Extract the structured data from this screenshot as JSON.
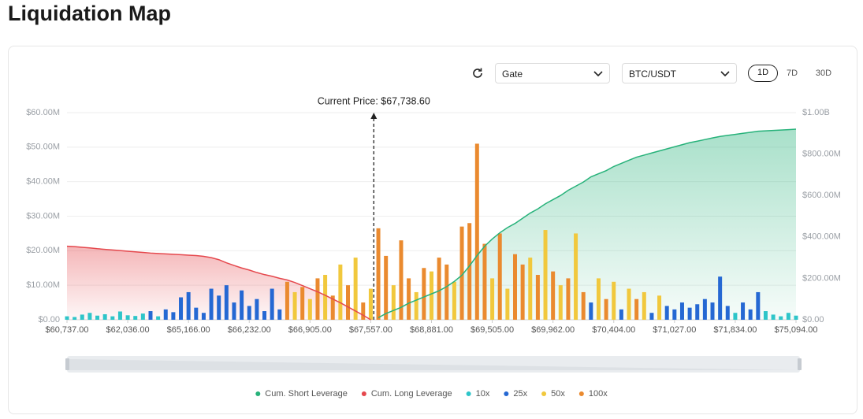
{
  "page_title": "Liquidation Map",
  "controls": {
    "exchange": "Gate",
    "pair": "BTC/USDT",
    "ranges": [
      "1D",
      "7D",
      "30D"
    ]
  },
  "chart_data": {
    "type": "bar",
    "annotation": "Current Price: $67,738.60",
    "categories": [
      "$60,737.00",
      null,
      null,
      null,
      null,
      null,
      null,
      null,
      "$62,036.00",
      null,
      null,
      null,
      null,
      null,
      null,
      null,
      "$65,166.00",
      null,
      null,
      null,
      null,
      null,
      null,
      null,
      "$66,232.00",
      null,
      null,
      null,
      null,
      null,
      null,
      null,
      "$66,905.00",
      null,
      null,
      null,
      null,
      null,
      null,
      null,
      "$67,557.00",
      null,
      null,
      null,
      null,
      null,
      null,
      null,
      "$68,881.00",
      null,
      null,
      null,
      null,
      null,
      null,
      null,
      "$69,505.00",
      null,
      null,
      null,
      null,
      null,
      null,
      null,
      "$69,962.00",
      null,
      null,
      null,
      null,
      null,
      null,
      null,
      "$70,404.00",
      null,
      null,
      null,
      null,
      null,
      null,
      null,
      "$71,027.00",
      null,
      null,
      null,
      null,
      null,
      null,
      null,
      "$71,834.00",
      null,
      null,
      null,
      null,
      null,
      null,
      null,
      "$75,094.00"
    ],
    "ylim": [
      0,
      60000000
    ],
    "yticks": [
      {
        "value": 0,
        "label": "$0.00"
      },
      {
        "value": 10000000,
        "label": "$10.00M"
      },
      {
        "value": 20000000,
        "label": "$20.00M"
      },
      {
        "value": 30000000,
        "label": "$30.00M"
      },
      {
        "value": 40000000,
        "label": "$40.00M"
      },
      {
        "value": 50000000,
        "label": "$50.00M"
      },
      {
        "value": 60000000,
        "label": "$60.00M"
      }
    ],
    "y2lim": [
      0,
      1000000000
    ],
    "y2ticks": [
      {
        "value": 0,
        "label": "$0.00"
      },
      {
        "value": 200000000,
        "label": "$200.00M"
      },
      {
        "value": 400000000,
        "label": "$400.00M"
      },
      {
        "value": 600000000,
        "label": "$600.00M"
      },
      {
        "value": 800000000,
        "label": "$800.00M"
      },
      {
        "value": 1000000000,
        "label": "$1.00B"
      }
    ],
    "grid": true,
    "legend": "bottom",
    "series": [
      {
        "name": "Cum. Short Leverage",
        "type": "area",
        "axis": "y2",
        "color": "#27b27a",
        "values": [
          null,
          null,
          null,
          null,
          null,
          null,
          null,
          null,
          null,
          null,
          null,
          null,
          null,
          null,
          null,
          null,
          null,
          null,
          null,
          null,
          null,
          null,
          null,
          null,
          null,
          null,
          null,
          null,
          null,
          null,
          null,
          null,
          null,
          null,
          null,
          null,
          null,
          null,
          null,
          null,
          null,
          10000000,
          30000000,
          45000000,
          60000000,
          80000000,
          95000000,
          110000000,
          125000000,
          140000000,
          160000000,
          185000000,
          215000000,
          260000000,
          310000000,
          355000000,
          390000000,
          420000000,
          445000000,
          465000000,
          490000000,
          515000000,
          535000000,
          560000000,
          580000000,
          600000000,
          625000000,
          645000000,
          665000000,
          690000000,
          705000000,
          720000000,
          740000000,
          755000000,
          770000000,
          785000000,
          795000000,
          805000000,
          815000000,
          825000000,
          835000000,
          845000000,
          855000000,
          862000000,
          870000000,
          878000000,
          885000000,
          890000000,
          895000000,
          900000000,
          905000000,
          910000000,
          912000000,
          914000000,
          916000000,
          918000000,
          920000000
        ]
      },
      {
        "name": "Cum. Long Leverage",
        "type": "area",
        "axis": "y2",
        "color": "#e5484d",
        "values": [
          355000000,
          353000000,
          350000000,
          347000000,
          343000000,
          340000000,
          337000000,
          334000000,
          331000000,
          328000000,
          325000000,
          322000000,
          320000000,
          318000000,
          316000000,
          314000000,
          312000000,
          310000000,
          306000000,
          300000000,
          290000000,
          275000000,
          262000000,
          250000000,
          240000000,
          228000000,
          218000000,
          210000000,
          200000000,
          192000000,
          180000000,
          165000000,
          150000000,
          135000000,
          118000000,
          100000000,
          82000000,
          62000000,
          42000000,
          22000000,
          0,
          null,
          null,
          null,
          null,
          null,
          null,
          null,
          null,
          null,
          null,
          null,
          null,
          null,
          null,
          null,
          null,
          null,
          null,
          null,
          null,
          null,
          null,
          null,
          null,
          null,
          null,
          null,
          null,
          null,
          null,
          null,
          null,
          null,
          null,
          null,
          null,
          null,
          null,
          null,
          null,
          null,
          null,
          null,
          null,
          null,
          null,
          null,
          null,
          null,
          null,
          null,
          null,
          null,
          null,
          null,
          null
        ]
      },
      {
        "name": "10x",
        "type": "bar",
        "color": "#2ec5c9",
        "values": [
          1000000,
          800000,
          1500000,
          2000000,
          1200000,
          1600000,
          1000000,
          2400000,
          1300000,
          1100000,
          1800000,
          null,
          1000000,
          null,
          null,
          null,
          null,
          null,
          null,
          null,
          null,
          null,
          null,
          null,
          null,
          null,
          null,
          null,
          null,
          null,
          null,
          null,
          null,
          null,
          null,
          null,
          null,
          null,
          null,
          null,
          null,
          null,
          null,
          null,
          null,
          null,
          null,
          null,
          null,
          null,
          null,
          null,
          null,
          null,
          null,
          null,
          null,
          null,
          null,
          null,
          null,
          null,
          null,
          null,
          null,
          null,
          null,
          null,
          null,
          null,
          null,
          null,
          null,
          null,
          null,
          null,
          null,
          null,
          null,
          null,
          null,
          null,
          null,
          null,
          null,
          null,
          null,
          null,
          2000000,
          null,
          null,
          null,
          2500000,
          1500000,
          1000000,
          2000000,
          1200000
        ]
      },
      {
        "name": "25x",
        "type": "bar",
        "color": "#2568d3",
        "values": [
          null,
          null,
          null,
          null,
          null,
          null,
          null,
          null,
          null,
          null,
          null,
          2500000,
          null,
          3000000,
          2200000,
          6500000,
          8000000,
          3500000,
          2000000,
          9000000,
          7000000,
          10000000,
          5000000,
          8500000,
          4000000,
          6000000,
          2500000,
          9000000,
          3000000,
          null,
          null,
          null,
          null,
          null,
          null,
          null,
          null,
          null,
          null,
          null,
          null,
          null,
          null,
          null,
          null,
          null,
          null,
          null,
          null,
          null,
          null,
          null,
          null,
          null,
          null,
          null,
          null,
          null,
          null,
          null,
          null,
          null,
          null,
          null,
          null,
          null,
          null,
          null,
          null,
          5000000,
          null,
          null,
          null,
          3000000,
          null,
          null,
          null,
          2000000,
          null,
          4000000,
          3000000,
          5000000,
          3500000,
          4500000,
          6000000,
          5000000,
          12500000,
          4000000,
          null,
          5000000,
          3000000,
          8000000,
          null,
          null,
          null,
          null,
          null
        ]
      },
      {
        "name": "50x",
        "type": "bar",
        "color": "#f1c83d",
        "values": [
          null,
          null,
          null,
          null,
          null,
          null,
          null,
          null,
          null,
          null,
          null,
          null,
          null,
          null,
          null,
          null,
          null,
          null,
          null,
          null,
          null,
          null,
          null,
          null,
          null,
          null,
          null,
          null,
          null,
          null,
          8000000,
          null,
          6000000,
          null,
          13000000,
          null,
          16000000,
          null,
          18000000,
          null,
          9000000,
          null,
          null,
          10000000,
          null,
          null,
          8000000,
          null,
          14000000,
          null,
          null,
          11000000,
          null,
          null,
          null,
          null,
          12000000,
          null,
          9000000,
          null,
          null,
          18000000,
          null,
          26000000,
          null,
          10000000,
          null,
          25000000,
          null,
          null,
          12000000,
          null,
          11000000,
          null,
          9000000,
          null,
          8000000,
          null,
          7000000,
          null,
          null,
          null,
          null,
          null,
          null,
          null,
          null,
          null,
          null,
          null,
          null,
          null,
          null,
          null,
          null,
          null,
          null
        ]
      },
      {
        "name": "100x",
        "type": "bar",
        "color": "#ea8a2f",
        "values": [
          null,
          null,
          null,
          null,
          null,
          null,
          null,
          null,
          null,
          null,
          null,
          null,
          null,
          null,
          null,
          null,
          null,
          null,
          null,
          null,
          null,
          null,
          null,
          null,
          null,
          null,
          null,
          null,
          null,
          11000000,
          null,
          9500000,
          null,
          12000000,
          null,
          7000000,
          null,
          10000000,
          null,
          5000000,
          null,
          26500000,
          18500000,
          null,
          23000000,
          12000000,
          null,
          15000000,
          null,
          18000000,
          16000000,
          null,
          27000000,
          28000000,
          51000000,
          22000000,
          null,
          25000000,
          null,
          19000000,
          16000000,
          null,
          13000000,
          null,
          14000000,
          null,
          12000000,
          null,
          8000000,
          null,
          null,
          6000000,
          null,
          null,
          null,
          6000000,
          null,
          null,
          null,
          null,
          null,
          null,
          null,
          null,
          null,
          null,
          null,
          null,
          null,
          null,
          null,
          null,
          null,
          null,
          null,
          null,
          null
        ]
      }
    ]
  }
}
